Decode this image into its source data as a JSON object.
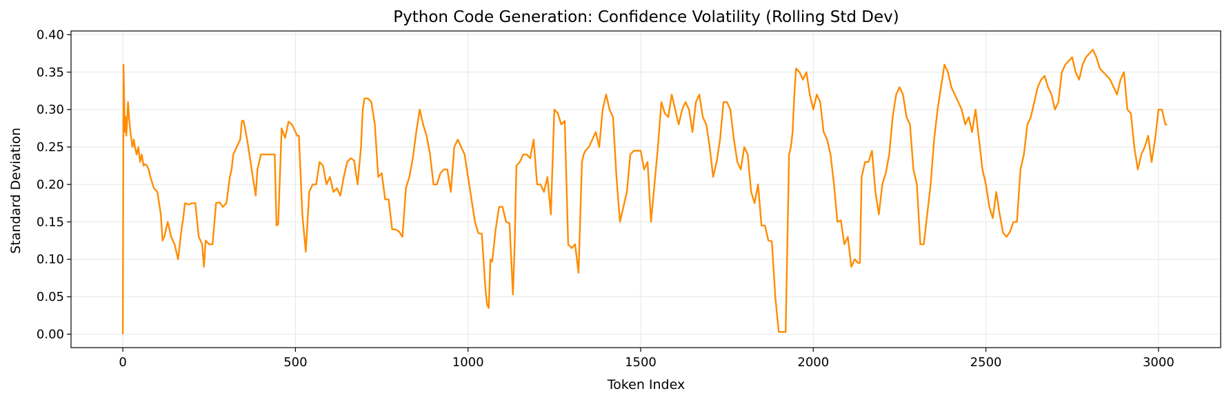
{
  "chart_data": {
    "type": "line",
    "title": "Python Code Generation: Confidence Volatility (Rolling Std Dev)",
    "xlabel": "Token Index",
    "ylabel": "Standard Deviation",
    "xlim": [
      -150,
      3180
    ],
    "ylim": [
      -0.018,
      0.405
    ],
    "xticks": [
      0,
      500,
      1000,
      1500,
      2000,
      2500,
      3000
    ],
    "xtick_labels": [
      "0",
      "500",
      "1000",
      "1500",
      "2000",
      "2500",
      "3000"
    ],
    "yticks": [
      0.0,
      0.05,
      0.1,
      0.15,
      0.2,
      0.25,
      0.3,
      0.35,
      0.4
    ],
    "ytick_labels": [
      "0.00",
      "0.05",
      "0.10",
      "0.15",
      "0.20",
      "0.25",
      "0.30",
      "0.35",
      "0.40"
    ],
    "grid": true,
    "colors": {
      "line": "#ff8c00",
      "grid": "#e6e6e6",
      "axes": "#000000"
    },
    "series": [
      {
        "x": [
          0,
          2,
          4,
          6,
          8,
          10,
          12,
          15,
          18,
          20,
          22,
          25,
          28,
          32,
          35,
          40,
          45,
          50,
          55,
          60,
          65,
          70,
          75,
          80,
          90,
          100,
          110,
          115,
          120,
          125,
          130,
          135,
          140,
          150,
          160,
          165,
          170,
          175,
          180,
          190,
          200,
          210,
          220,
          230,
          235,
          240,
          250,
          260,
          270,
          280,
          290,
          300,
          310,
          315,
          320,
          330,
          340,
          345,
          350,
          360,
          370,
          380,
          385,
          390,
          400,
          410,
          420,
          430,
          440,
          445,
          450,
          460,
          470,
          480,
          490,
          500,
          505,
          510,
          520,
          530,
          540,
          550,
          560,
          570,
          580,
          590,
          600,
          610,
          620,
          630,
          640,
          650,
          660,
          670,
          680,
          690,
          695,
          700,
          710,
          720,
          730,
          740,
          750,
          760,
          770,
          780,
          790,
          800,
          810,
          820,
          830,
          840,
          850,
          860,
          870,
          880,
          890,
          900,
          910,
          920,
          930,
          940,
          950,
          960,
          970,
          980,
          990,
          1000,
          1010,
          1020,
          1030,
          1040,
          1050,
          1055,
          1060,
          1065,
          1070,
          1080,
          1090,
          1100,
          1110,
          1120,
          1130,
          1135,
          1140,
          1150,
          1160,
          1170,
          1180,
          1190,
          1200,
          1210,
          1220,
          1230,
          1240,
          1250,
          1260,
          1270,
          1280,
          1290,
          1300,
          1310,
          1320,
          1330,
          1335,
          1340,
          1350,
          1360,
          1370,
          1380,
          1390,
          1400,
          1410,
          1420,
          1430,
          1440,
          1450,
          1460,
          1470,
          1480,
          1490,
          1500,
          1510,
          1520,
          1530,
          1540,
          1550,
          1560,
          1570,
          1580,
          1590,
          1600,
          1610,
          1620,
          1630,
          1640,
          1650,
          1660,
          1670,
          1680,
          1690,
          1700,
          1710,
          1720,
          1730,
          1740,
          1750,
          1760,
          1770,
          1780,
          1790,
          1800,
          1810,
          1820,
          1830,
          1840,
          1850,
          1860,
          1870,
          1880,
          1890,
          1900,
          1910,
          1920,
          1925,
          1930,
          1935,
          1940,
          1945,
          1950,
          1960,
          1970,
          1980,
          1990,
          2000,
          2010,
          2020,
          2030,
          2040,
          2050,
          2060,
          2070,
          2080,
          2090,
          2100,
          2110,
          2120,
          2130,
          2135,
          2140,
          2145,
          2150,
          2160,
          2170,
          2180,
          2190,
          2200,
          2210,
          2220,
          2230,
          2240,
          2250,
          2260,
          2270,
          2280,
          2290,
          2300,
          2310,
          2320,
          2330,
          2340,
          2350,
          2360,
          2370,
          2380,
          2390,
          2400,
          2410,
          2420,
          2430,
          2440,
          2450,
          2460,
          2470,
          2480,
          2490,
          2500,
          2510,
          2520,
          2530,
          2540,
          2550,
          2560,
          2570,
          2580,
          2590,
          2600,
          2610,
          2620,
          2630,
          2640,
          2650,
          2660,
          2670,
          2680,
          2690,
          2700,
          2710,
          2720,
          2730,
          2740,
          2750,
          2760,
          2770,
          2780,
          2790,
          2800,
          2810,
          2820,
          2830,
          2840,
          2850,
          2860,
          2870,
          2880,
          2890,
          2900,
          2910,
          2920,
          2930,
          2940,
          2950,
          2960,
          2970,
          2980,
          2990,
          3000,
          3010,
          3020,
          3025
        ],
        "values": [
          0.0,
          0.36,
          0.31,
          0.27,
          0.29,
          0.265,
          0.28,
          0.31,
          0.29,
          0.28,
          0.27,
          0.26,
          0.25,
          0.26,
          0.25,
          0.24,
          0.25,
          0.23,
          0.24,
          0.225,
          0.227,
          0.225,
          0.22,
          0.21,
          0.195,
          0.19,
          0.16,
          0.125,
          0.13,
          0.14,
          0.15,
          0.14,
          0.13,
          0.12,
          0.1,
          0.12,
          0.14,
          0.155,
          0.175,
          0.173,
          0.175,
          0.175,
          0.13,
          0.12,
          0.09,
          0.125,
          0.12,
          0.12,
          0.175,
          0.176,
          0.17,
          0.175,
          0.21,
          0.22,
          0.24,
          0.25,
          0.26,
          0.285,
          0.285,
          0.26,
          0.23,
          0.2,
          0.185,
          0.22,
          0.24,
          0.24,
          0.24,
          0.24,
          0.24,
          0.145,
          0.147,
          0.275,
          0.262,
          0.284,
          0.28,
          0.27,
          0.265,
          0.265,
          0.16,
          0.11,
          0.19,
          0.2,
          0.2,
          0.23,
          0.225,
          0.2,
          0.21,
          0.19,
          0.195,
          0.185,
          0.21,
          0.23,
          0.235,
          0.232,
          0.2,
          0.25,
          0.3,
          0.315,
          0.315,
          0.31,
          0.28,
          0.21,
          0.215,
          0.18,
          0.18,
          0.14,
          0.14,
          0.137,
          0.13,
          0.195,
          0.21,
          0.235,
          0.27,
          0.3,
          0.28,
          0.265,
          0.24,
          0.2,
          0.2,
          0.215,
          0.22,
          0.22,
          0.19,
          0.25,
          0.26,
          0.25,
          0.24,
          0.21,
          0.18,
          0.15,
          0.135,
          0.134,
          0.063,
          0.04,
          0.035,
          0.1,
          0.097,
          0.14,
          0.17,
          0.17,
          0.15,
          0.148,
          0.053,
          0.12,
          0.225,
          0.23,
          0.24,
          0.24,
          0.235,
          0.26,
          0.2,
          0.2,
          0.19,
          0.21,
          0.16,
          0.3,
          0.295,
          0.28,
          0.285,
          0.12,
          0.115,
          0.12,
          0.082,
          0.23,
          0.24,
          0.245,
          0.25,
          0.26,
          0.27,
          0.25,
          0.3,
          0.32,
          0.3,
          0.29,
          0.21,
          0.15,
          0.17,
          0.19,
          0.24,
          0.245,
          0.245,
          0.245,
          0.22,
          0.23,
          0.15,
          0.2,
          0.25,
          0.31,
          0.295,
          0.29,
          0.32,
          0.3,
          0.28,
          0.3,
          0.31,
          0.3,
          0.27,
          0.31,
          0.32,
          0.29,
          0.28,
          0.25,
          0.21,
          0.23,
          0.26,
          0.31,
          0.31,
          0.3,
          0.26,
          0.23,
          0.22,
          0.25,
          0.24,
          0.19,
          0.175,
          0.2,
          0.145,
          0.145,
          0.125,
          0.124,
          0.05,
          0.003,
          0.003,
          0.003,
          0.12,
          0.24,
          0.25,
          0.27,
          0.32,
          0.355,
          0.35,
          0.34,
          0.35,
          0.32,
          0.3,
          0.32,
          0.31,
          0.27,
          0.26,
          0.24,
          0.2,
          0.15,
          0.152,
          0.12,
          0.13,
          0.09,
          0.1,
          0.095,
          0.095,
          0.21,
          0.22,
          0.23,
          0.23,
          0.245,
          0.19,
          0.16,
          0.2,
          0.215,
          0.24,
          0.29,
          0.32,
          0.33,
          0.32,
          0.29,
          0.28,
          0.22,
          0.2,
          0.12,
          0.12,
          0.16,
          0.2,
          0.26,
          0.3,
          0.33,
          0.36,
          0.35,
          0.33,
          0.32,
          0.31,
          0.3,
          0.28,
          0.29,
          0.27,
          0.3,
          0.26,
          0.22,
          0.2,
          0.17,
          0.155,
          0.19,
          0.16,
          0.135,
          0.13,
          0.137,
          0.15,
          0.15,
          0.22,
          0.24,
          0.28,
          0.29,
          0.31,
          0.33,
          0.34,
          0.345,
          0.33,
          0.32,
          0.3,
          0.31,
          0.35,
          0.36,
          0.365,
          0.37,
          0.35,
          0.34,
          0.36,
          0.37,
          0.375,
          0.38,
          0.37,
          0.355,
          0.35,
          0.345,
          0.34,
          0.33,
          0.32,
          0.34,
          0.35,
          0.3,
          0.295,
          0.25,
          0.22,
          0.24,
          0.25,
          0.265,
          0.23,
          0.26,
          0.3,
          0.3,
          0.28,
          0.28
        ]
      }
    ]
  }
}
